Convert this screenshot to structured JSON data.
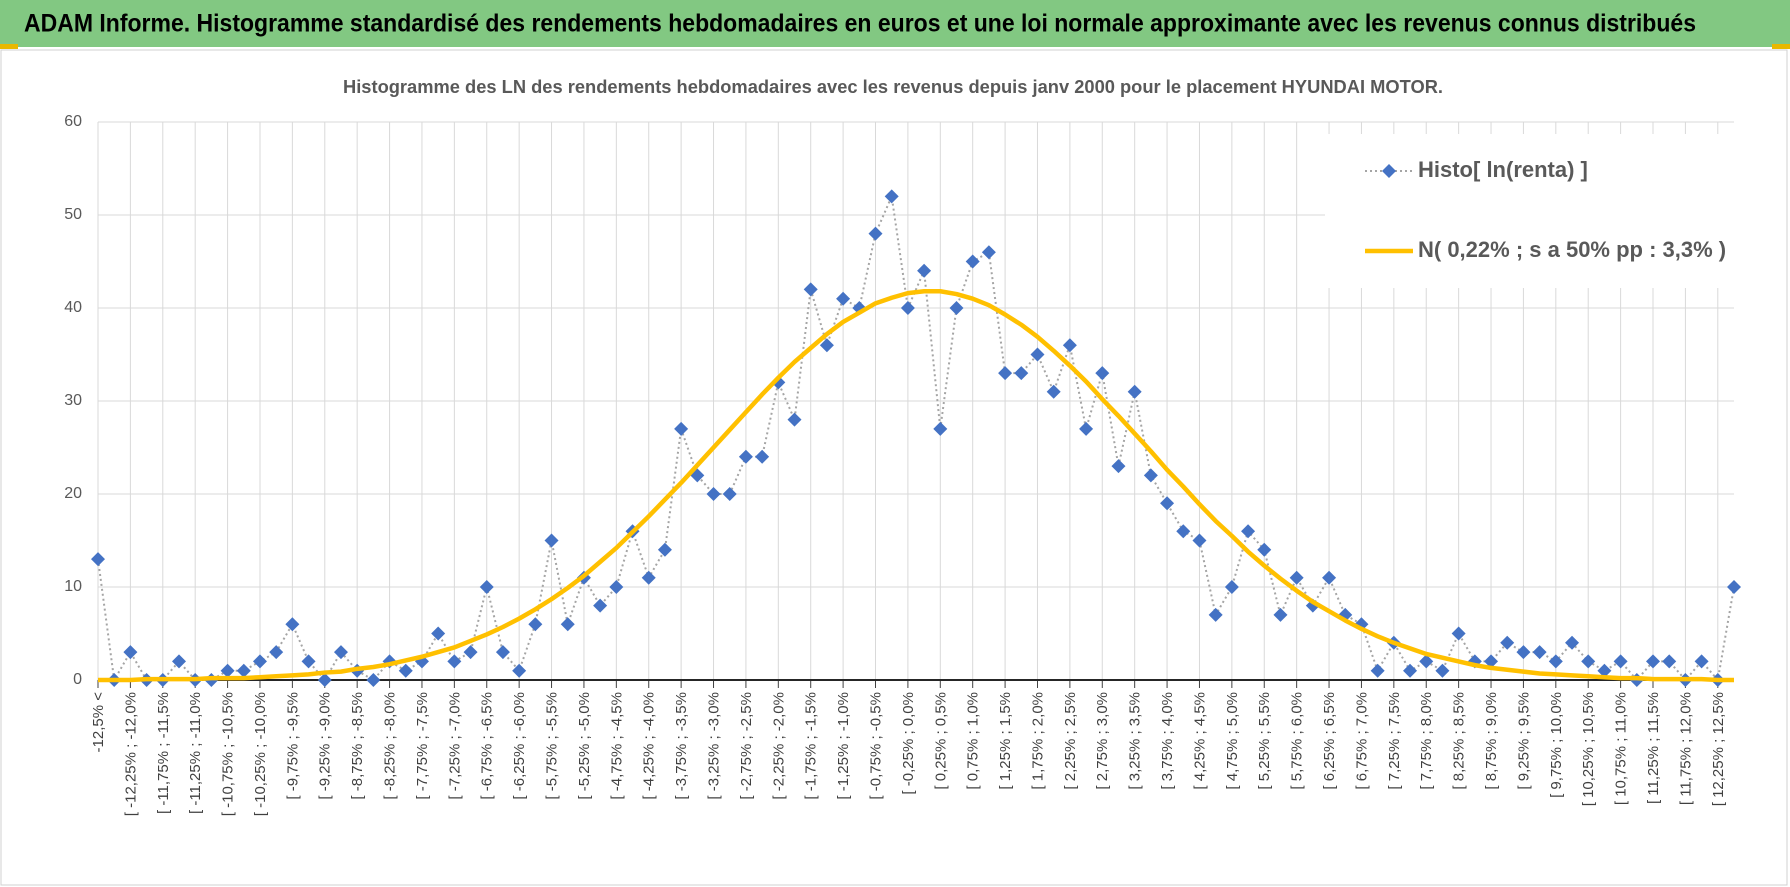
{
  "header": {
    "title": "ADAM Informe. Histogramme standardisé des rendements hebdomadaires en euros et une loi normale approximante avec les revenus connus distribués"
  },
  "chart_data": {
    "type": "line",
    "title": "Histogramme des LN des rendements hebdomadaires avec les revenus depuis janv 2000 pour le placement HYUNDAI MOTOR.",
    "categories": [
      "-12,5% <",
      null,
      "[ -12,25% ; -12,0%",
      null,
      "[ -11,75% ; -11,5%",
      null,
      "[ -11,25% ; -11,0%",
      null,
      "[ -10,75% ; -10,5%",
      null,
      "[ -10,25% ; -10,0%",
      null,
      "[ -9,75% ; -9,5%",
      null,
      "[ -9,25% ; -9,0%",
      null,
      "[ -8,75% ; -8,5%",
      null,
      "[ -8,25% ; -8,0%",
      null,
      "[ -7,75% ; -7,5%",
      null,
      "[ -7,25% ; -7,0%",
      null,
      "[ -6,75% ; -6,5%",
      null,
      "[ -6,25% ; -6,0%",
      null,
      "[ -5,75% ; -5,5%",
      null,
      "[ -5,25% ; -5,0%",
      null,
      "[ -4,75% ; -4,5%",
      null,
      "[ -4,25% ; -4,0%",
      null,
      "[ -3,75% ; -3,5%",
      null,
      "[ -3,25% ; -3,0%",
      null,
      "[ -2,75% ; -2,5%",
      null,
      "[ -2,25% ; -2,0%",
      null,
      "[ -1,75% ; -1,5%",
      null,
      "[ -1,25% ; -1,0%",
      null,
      "[ -0,75% ; -0,5%",
      null,
      "[ -0,25% ; 0,0%",
      null,
      "[ 0,25% ; 0,5%",
      null,
      "[ 0,75% ; 1,0%",
      null,
      "[ 1,25% ; 1,5%",
      null,
      "[ 1,75% ; 2,0%",
      null,
      "[ 2,25% ; 2,5%",
      null,
      "[ 2,75% ; 3,0%",
      null,
      "[ 3,25% ; 3,5%",
      null,
      "[ 3,75% ; 4,0%",
      null,
      "[ 4,25% ; 4,5%",
      null,
      "[ 4,75% ; 5,0%",
      null,
      "[ 5,25% ; 5,5%",
      null,
      "[ 5,75% ; 6,0%",
      null,
      "[ 6,25% ; 6,5%",
      null,
      "[ 6,75% ; 7,0%",
      null,
      "[ 7,25% ; 7,5%",
      null,
      "[ 7,75% ; 8,0%",
      null,
      "[ 8,25% ; 8,5%",
      null,
      "[ 8,75% ; 9,0%",
      null,
      "[ 9,25% ; 9,5%",
      null,
      "[ 9,75% ; 10,0%",
      null,
      "[ 10,25% ; 10,5%",
      null,
      "[ 10,75% ; 11,0%",
      null,
      "[ 11,25% ; 11,5%",
      null,
      "[ 11,75% ; 12,0%",
      null,
      "[ 12,25% ; 12,5%",
      null
    ],
    "series": [
      {
        "name": "Histo[ ln(renta) ]",
        "color": "#4472c4",
        "marker": "diamond",
        "line_color": "#a5a5a5",
        "dashed": true,
        "values": [
          13,
          0,
          3,
          0,
          0,
          2,
          0,
          0,
          1,
          1,
          2,
          3,
          6,
          2,
          0,
          3,
          1,
          0,
          2,
          1,
          2,
          5,
          2,
          3,
          10,
          3,
          1,
          6,
          15,
          6,
          11,
          8,
          10,
          16,
          11,
          14,
          27,
          22,
          20,
          20,
          24,
          24,
          32,
          28,
          42,
          36,
          41,
          40,
          48,
          52,
          40,
          44,
          27,
          40,
          45,
          46,
          33,
          33,
          35,
          31,
          36,
          27,
          33,
          23,
          31,
          22,
          19,
          16,
          15,
          7,
          10,
          16,
          14,
          7,
          11,
          8,
          11,
          7,
          6,
          1,
          4,
          1,
          2,
          1,
          5,
          2,
          2,
          4,
          3,
          3,
          2,
          4,
          2,
          1,
          2,
          0,
          2,
          2,
          0,
          2,
          0,
          10
        ]
      },
      {
        "name": "N( 0,22% ; s a 50% pp : 3,3% )",
        "color": "#ffc000",
        "values": [
          0,
          0,
          0,
          0.1,
          0.1,
          0.1,
          0.1,
          0.2,
          0.2,
          0.2,
          0.3,
          0.4,
          0.5,
          0.6,
          0.8,
          0.9,
          1.2,
          1.4,
          1.7,
          2.1,
          2.5,
          3,
          3.5,
          4.2,
          4.9,
          5.7,
          6.6,
          7.6,
          8.7,
          9.9,
          11.2,
          12.7,
          14.2,
          15.9,
          17.6,
          19.4,
          21.2,
          23.1,
          25,
          26.9,
          28.8,
          30.7,
          32.5,
          34.2,
          35.7,
          37.2,
          38.5,
          39.5,
          40.5,
          41.1,
          41.6,
          41.8,
          41.8,
          41.5,
          41,
          40.3,
          39.3,
          38.2,
          36.9,
          35.4,
          33.8,
          32.1,
          30.2,
          28.4,
          26.5,
          24.6,
          22.6,
          20.8,
          18.9,
          17.1,
          15.5,
          13.8,
          12.3,
          10.9,
          9.6,
          8.4,
          7.4,
          6.4,
          5.5,
          4.7,
          4,
          3.4,
          2.8,
          2.4,
          2,
          1.6,
          1.3,
          1.1,
          0.9,
          0.7,
          0.6,
          0.5,
          0.4,
          0.3,
          0.2,
          0.2,
          0.1,
          0.1,
          0.1,
          0.1,
          0,
          0
        ]
      }
    ],
    "ylim": [
      0,
      60
    ],
    "yticks": [
      0,
      10,
      20,
      30,
      40,
      50,
      60
    ],
    "grid": true,
    "legend": "top-right"
  }
}
